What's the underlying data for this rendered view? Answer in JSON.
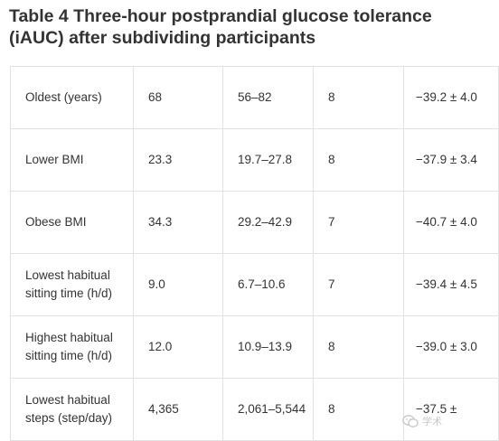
{
  "title": "Table 4  Three-hour postprandial glucose tolerance (iAUC) after subdividing participants",
  "rows": [
    {
      "label": "Oldest (years)",
      "mean": "68",
      "range": "56–82",
      "n": "8",
      "value": "−39.2 ± 4.0"
    },
    {
      "label": "Lower BMI",
      "mean": "23.3",
      "range": "19.7–27.8",
      "n": "8",
      "value": "−37.9 ± 3.4"
    },
    {
      "label": "Obese BMI",
      "mean": "34.3",
      "range": "29.2–42.9",
      "n": "7",
      "value": "−40.7 ± 4.0"
    },
    {
      "label": "Lowest habitual sitting time (h/d)",
      "mean": "9.0",
      "range": "6.7–10.6",
      "n": "7",
      "value": "−39.4 ± 4.5"
    },
    {
      "label": "Highest habitual sitting time (h/d)",
      "mean": "12.0",
      "range": "10.9–13.9",
      "n": "8",
      "value": "−39.0 ± 3.0"
    },
    {
      "label": "Lowest habitual steps (step/day)",
      "mean": "4,365",
      "range": "2,061–5,544",
      "n": "8",
      "value": "−37.5 ±"
    }
  ],
  "watermark": {
    "icon": "wechat-logo-icon",
    "text": "学术"
  }
}
